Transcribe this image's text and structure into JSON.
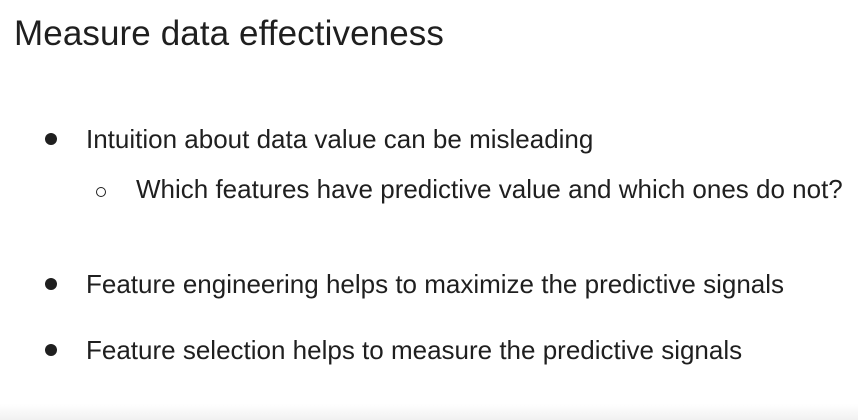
{
  "slide": {
    "title": "Measure data effectiveness",
    "bullets": [
      {
        "text": "Intuition about data value can be misleading",
        "level": 1
      },
      {
        "text": "Which features have predictive value and which ones do not?",
        "level": 2
      },
      {
        "text": "Feature engineering helps to maximize the predictive signals",
        "level": 1
      },
      {
        "text": "Feature selection helps to measure the predictive signals",
        "level": 1
      }
    ]
  }
}
